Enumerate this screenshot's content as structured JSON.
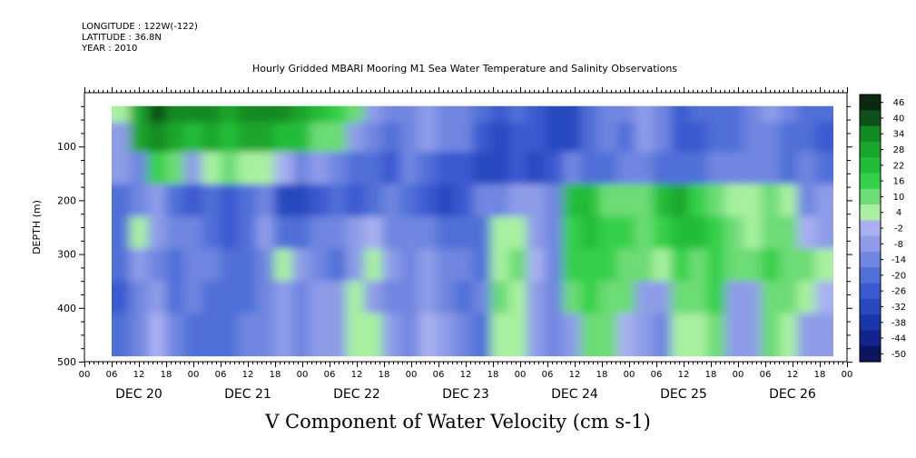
{
  "header": {
    "longitude": "LONGITUDE : 122W(-122)",
    "latitude": "LATITUDE : 36.8N",
    "year": "YEAR : 2010"
  },
  "chart_data": {
    "type": "heatmap",
    "title": "Hourly Gridded MBARI Mooring M1 Sea Water Temperature and Salinity Observations",
    "xlabel": "V Component of Water Velocity (cm s-1)",
    "ylabel": "DEPTH (m)",
    "x_hour_ticks": [
      "00",
      "06",
      "12",
      "18",
      "00",
      "06",
      "12",
      "18",
      "00",
      "06",
      "12",
      "18",
      "00",
      "06",
      "12",
      "18",
      "00",
      "06",
      "12",
      "18",
      "00",
      "06",
      "12",
      "18",
      "00",
      "06",
      "12",
      "18",
      "00"
    ],
    "x_day_labels": [
      "DEC 20",
      "DEC 21",
      "DEC 22",
      "DEC 23",
      "DEC 24",
      "DEC 25",
      "DEC 26"
    ],
    "xlim_hours": [
      0,
      168
    ],
    "data_x_range_hours": [
      6,
      165
    ],
    "y_tick_labels": [
      "100",
      "200",
      "300",
      "400",
      "500"
    ],
    "ylim": [
      500,
      0
    ],
    "data_depth_range": [
      25,
      490
    ],
    "colorbar": {
      "labels": [
        "46",
        "40",
        "34",
        "28",
        "22",
        "16",
        "10",
        "4",
        "-2",
        "-8",
        "-14",
        "-20",
        "-26",
        "-32",
        "-38",
        "-44",
        "-50"
      ],
      "range": [
        -50,
        50
      ],
      "colors": [
        "#0a2a10",
        "#0d5018",
        "#128a22",
        "#1aa62c",
        "#22bd38",
        "#34d048",
        "#6cdc74",
        "#a8f0a0",
        "#a8b0f0",
        "#8e9ce8",
        "#7086e0",
        "#5070d8",
        "#3a5ad0",
        "#2848c0",
        "#1a36a8",
        "#12248c",
        "#0a1460"
      ]
    },
    "series": [
      {
        "depth": 30,
        "values": [
          8,
          32,
          40,
          38,
          36,
          34,
          30,
          34,
          38,
          36,
          30,
          22,
          18,
          10,
          -4,
          -12,
          -10,
          -6,
          -14,
          -12,
          -20,
          -24,
          -18,
          -22,
          -30,
          -28,
          -18,
          -10,
          -14,
          -6,
          -12,
          -22,
          -20,
          -16,
          -18,
          -10,
          -8,
          -14,
          -18,
          -20
        ]
      },
      {
        "depth": 80,
        "values": [
          -4,
          30,
          34,
          30,
          26,
          28,
          24,
          28,
          30,
          26,
          22,
          14,
          10,
          -4,
          -12,
          -18,
          -14,
          -8,
          -10,
          -12,
          -24,
          -28,
          -22,
          -26,
          -32,
          -30,
          -20,
          -12,
          -16,
          -8,
          -14,
          -24,
          -22,
          -18,
          -20,
          -12,
          -10,
          -16,
          -20,
          -22
        ]
      },
      {
        "depth": 140,
        "values": [
          -8,
          -10,
          16,
          10,
          -6,
          4,
          10,
          8,
          6,
          2,
          -10,
          -8,
          -12,
          -20,
          -18,
          -22,
          -14,
          -16,
          -22,
          -24,
          -28,
          -32,
          -26,
          -30,
          -22,
          -14,
          -18,
          -16,
          -10,
          -12,
          -20,
          -18,
          -16,
          -14,
          -10,
          -12,
          -14,
          -18,
          -10,
          -20
        ]
      },
      {
        "depth": 200,
        "values": [
          -16,
          -12,
          -6,
          -20,
          -22,
          -16,
          -24,
          -20,
          -14,
          -28,
          -30,
          -22,
          -18,
          -24,
          -20,
          -14,
          -18,
          -22,
          -28,
          -24,
          -14,
          -10,
          -4,
          -8,
          -12,
          22,
          24,
          14,
          10,
          12,
          22,
          30,
          18,
          10,
          4,
          6,
          12,
          8,
          -10,
          -6
        ]
      },
      {
        "depth": 260,
        "values": [
          -18,
          4,
          -6,
          -14,
          -10,
          -18,
          -22,
          -16,
          -8,
          -18,
          -20,
          -12,
          -14,
          -6,
          -2,
          -10,
          -12,
          -10,
          -20,
          -18,
          -16,
          4,
          6,
          -4,
          -14,
          18,
          22,
          18,
          16,
          14,
          20,
          24,
          22,
          16,
          10,
          8,
          14,
          10,
          2,
          -8
        ]
      },
      {
        "depth": 320,
        "values": [
          -20,
          -6,
          -10,
          -16,
          -12,
          -14,
          -20,
          -18,
          -10,
          4,
          -8,
          -14,
          -16,
          -8,
          4,
          -6,
          -10,
          -6,
          -12,
          -14,
          -18,
          6,
          10,
          -2,
          -10,
          16,
          18,
          20,
          12,
          10,
          8,
          16,
          14,
          18,
          12,
          10,
          16,
          14,
          10,
          6
        ]
      },
      {
        "depth": 380,
        "values": [
          -22,
          -10,
          -4,
          -16,
          -14,
          -18,
          -20,
          -16,
          -12,
          -6,
          -10,
          -8,
          -4,
          6,
          -6,
          -10,
          -12,
          -4,
          -10,
          -16,
          -14,
          10,
          8,
          -4,
          -12,
          14,
          20,
          14,
          10,
          -4,
          -6,
          12,
          10,
          16,
          -6,
          -4,
          12,
          10,
          6,
          2
        ]
      },
      {
        "depth": 440,
        "values": [
          -20,
          -12,
          -2,
          -14,
          -16,
          -20,
          -18,
          -14,
          -10,
          -8,
          -12,
          -4,
          -6,
          4,
          4,
          -8,
          -10,
          -2,
          -6,
          -14,
          -16,
          8,
          6,
          -6,
          -10,
          -8,
          14,
          12,
          -2,
          -8,
          -10,
          6,
          8,
          10,
          -8,
          -6,
          10,
          8,
          -4,
          -6
        ]
      }
    ]
  }
}
